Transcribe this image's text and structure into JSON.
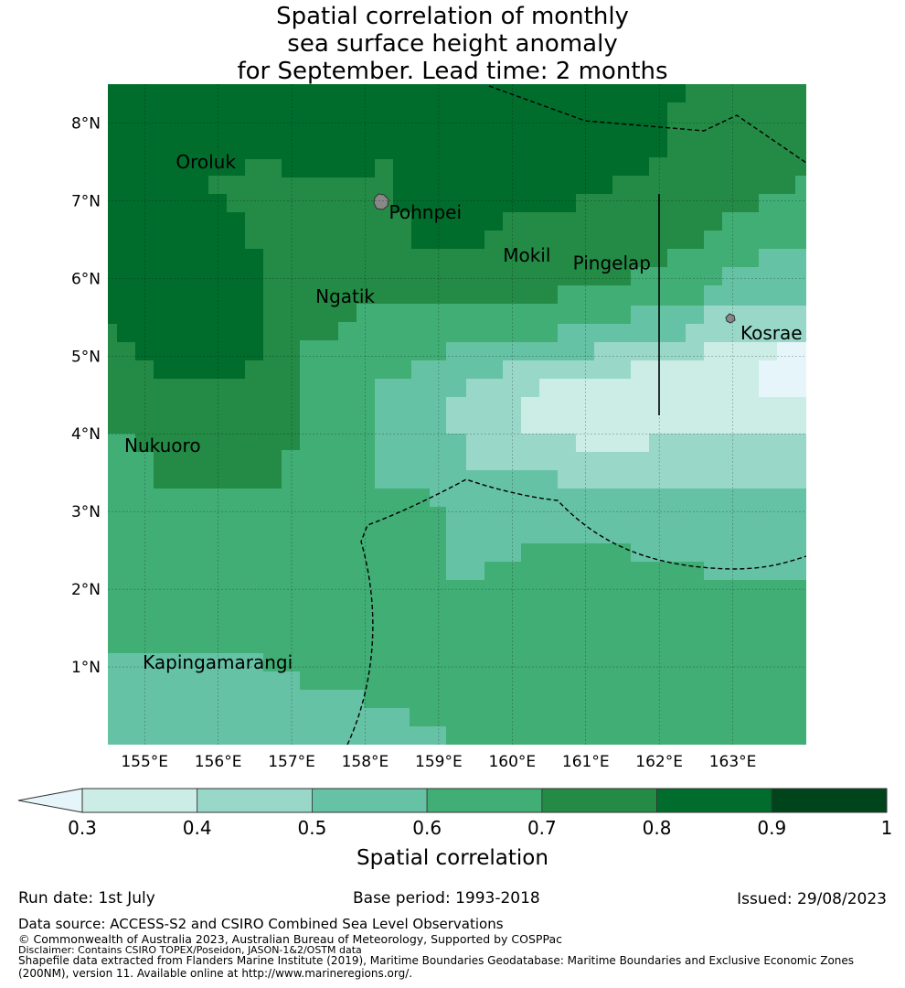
{
  "title": {
    "line1": "Spatial correlation of monthly",
    "line2": "sea surface height anomaly",
    "line3": "for September. Lead time: 2 months"
  },
  "map": {
    "lon_range": [
      154.5,
      164.0
    ],
    "lat_range": [
      0.0,
      8.5
    ],
    "lon_ticks": [
      "155°E",
      "156°E",
      "157°E",
      "158°E",
      "159°E",
      "160°E",
      "161°E",
      "162°E",
      "163°E"
    ],
    "lat_ticks": [
      "1°N",
      "2°N",
      "3°N",
      "4°N",
      "5°N",
      "6°N",
      "7°N",
      "8°N"
    ],
    "islands": [
      {
        "name": "Oroluk",
        "lon": 155.3,
        "lat": 7.5
      },
      {
        "name": "Pohnpei",
        "lon": 158.2,
        "lat": 6.85
      },
      {
        "name": "Mokil",
        "lon": 159.75,
        "lat": 6.3
      },
      {
        "name": "Pingelap",
        "lon": 160.7,
        "lat": 6.2
      },
      {
        "name": "Ngatik",
        "lon": 157.2,
        "lat": 5.77
      },
      {
        "name": "Kosrae",
        "lon": 162.98,
        "lat": 5.3
      },
      {
        "name": "Nukuoro",
        "lon": 154.6,
        "lat": 3.85
      },
      {
        "name": "Kapingamarangi",
        "lon": 154.85,
        "lat": 1.06
      }
    ]
  },
  "colorbar": {
    "label": "Spatial correlation",
    "ticks": [
      "0.3",
      "0.4",
      "0.5",
      "0.6",
      "0.7",
      "0.8",
      "0.9",
      "1"
    ],
    "colors": [
      "#e5f5f9",
      "#ccece6",
      "#99d8c9",
      "#66c2a4",
      "#41ae76",
      "#238b45",
      "#006d2c",
      "#00441b"
    ]
  },
  "footer": {
    "run_date": "Run date: 1st July",
    "base_period": "Base period: 1993-2018",
    "issued": "Issued: 29/08/2023",
    "data_source": "Data source: ACCESS-S2 and CSIRO Combined Sea Level Observations",
    "copyright": "© Commonwealth of Australia 2023, Australian Bureau of Meteorology, Supported by COSPPac",
    "disclaimer": "Disclaimer: Contains CSIRO TOPEX/Poseidon, JASON-1&2/OSTM data",
    "shapefile_line1": "Shapefile data extracted from Flanders Marine Institute (2019), Maritime Boundaries Geodatabase: Maritime Boundaries and Exclusive Economic Zones",
    "shapefile_line2": "(200NM), version 11. Available online at http://www.marineregions.org/."
  }
}
